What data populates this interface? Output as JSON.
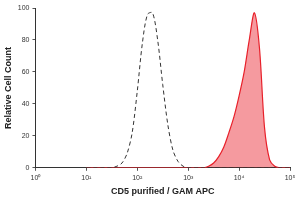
{
  "chart_data": {
    "type": "line",
    "x_label": "CD5 purified / GAM APC",
    "y_label": "Relative Cell Count",
    "log": "x",
    "grid": false,
    "x": [
      10,
      12.6,
      15.8,
      20,
      25.1,
      31.6,
      39.8,
      50.1,
      63.1,
      79.4,
      100,
      125.9,
      158.5,
      199.5,
      251.2,
      316.2,
      398.1,
      501.2,
      631,
      794.3,
      1000,
      1259,
      1585,
      1995,
      2512,
      3162,
      3981,
      5012,
      6310,
      7943,
      10000,
      12589,
      15849,
      19953,
      25119,
      31623,
      39811,
      50119,
      63096,
      79433,
      100000
    ],
    "series": [
      {
        "type": "line",
        "line_style": "dashed",
        "color": "#333333",
        "values": [
          0,
          0,
          0,
          0,
          0,
          0,
          1,
          3,
          9,
          22,
          48,
          78,
          96,
          97,
          80,
          52,
          27,
          11,
          4,
          1,
          0,
          0,
          0,
          0,
          0,
          0,
          0,
          0,
          0,
          0,
          0,
          0,
          0,
          0,
          0,
          0,
          0,
          0,
          0,
          0,
          0
        ]
      },
      {
        "type": "area",
        "line_style": "solid",
        "color": "#e8202a",
        "values": [
          0,
          0,
          0,
          0,
          0,
          0,
          0,
          0,
          0,
          0,
          0,
          0,
          0,
          0,
          0,
          0,
          0,
          0,
          0,
          0,
          0,
          0,
          0,
          0,
          1,
          3,
          7,
          13,
          22,
          32,
          45,
          60,
          80,
          97,
          75,
          25,
          5,
          1,
          0,
          0,
          0
        ]
      }
    ],
    "xlim": [
      1,
      100000
    ],
    "xticks": [
      {
        "value": 1,
        "label": "10⁰"
      },
      {
        "value": 10,
        "label": "10¹"
      },
      {
        "value": 100,
        "label": "10²"
      },
      {
        "value": 1000,
        "label": "10³"
      },
      {
        "value": 10000,
        "label": "10⁴"
      },
      {
        "value": 100000,
        "label": "10⁵"
      }
    ],
    "ylim": [
      0,
      100
    ],
    "yticks": [
      0,
      20,
      40,
      60,
      80,
      100
    ]
  }
}
